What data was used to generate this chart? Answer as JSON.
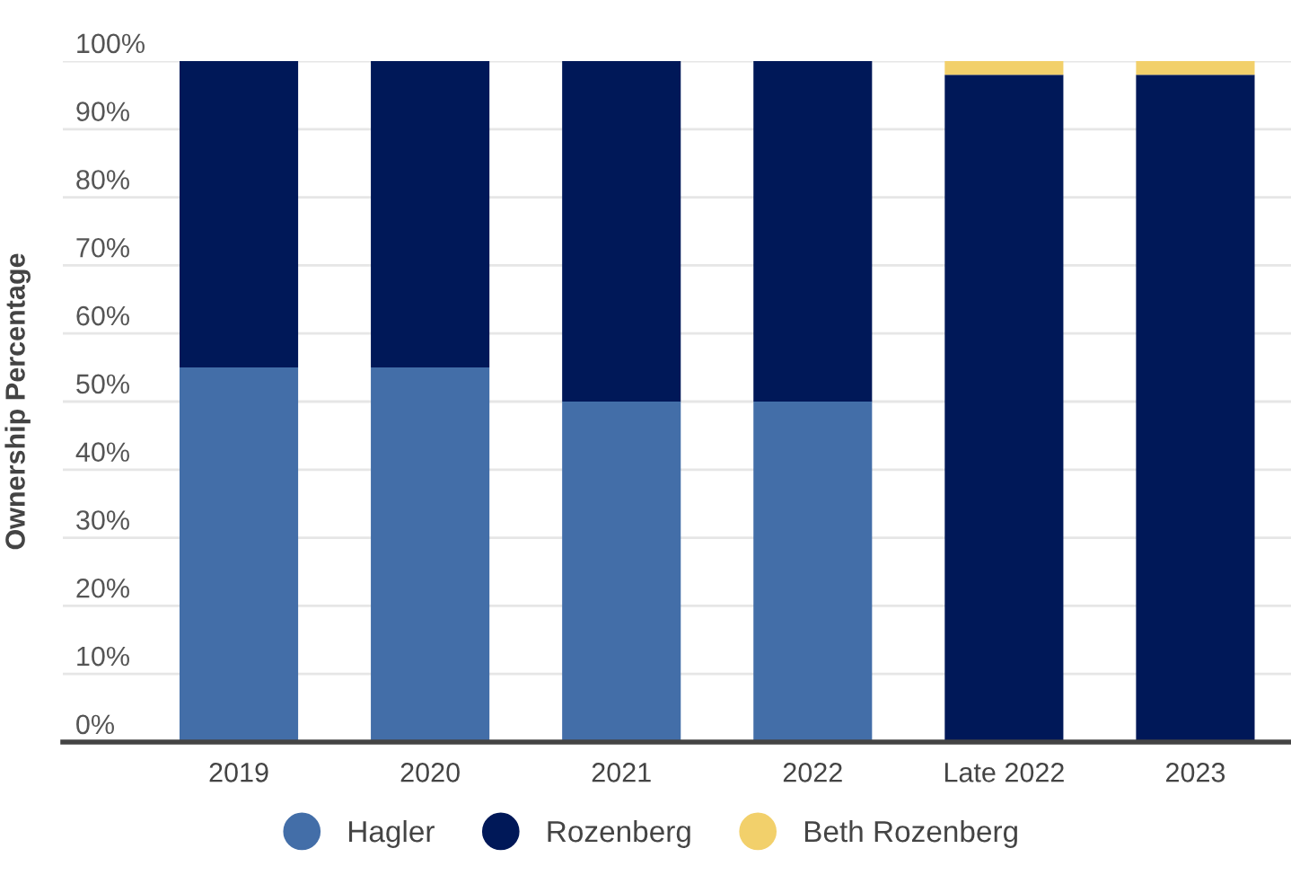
{
  "chart_data": {
    "type": "bar",
    "stacked": true,
    "ylabel": "Ownership Percentage",
    "categories": [
      "2019",
      "2020",
      "2021",
      "2022",
      "Late 2022",
      "2023"
    ],
    "series": [
      {
        "name": "Hagler",
        "color": "#436ea8",
        "values": [
          55,
          55,
          50,
          50,
          0,
          0
        ]
      },
      {
        "name": "Rozenberg",
        "color": "#001858",
        "values": [
          45,
          45,
          50,
          50,
          98,
          98
        ]
      },
      {
        "name": "Beth Rozenberg",
        "color": "#f2d06b",
        "values": [
          null,
          null,
          null,
          null,
          2,
          2
        ]
      }
    ],
    "ylim": [
      0,
      100
    ],
    "yticks": [
      {
        "value": 0,
        "label": "0%"
      },
      {
        "value": 10,
        "label": "10%"
      },
      {
        "value": 20,
        "label": "20%"
      },
      {
        "value": 30,
        "label": "30%"
      },
      {
        "value": 40,
        "label": "40%"
      },
      {
        "value": 50,
        "label": "50%"
      },
      {
        "value": 60,
        "label": "60%"
      },
      {
        "value": 70,
        "label": "70%"
      },
      {
        "value": 80,
        "label": "80%"
      },
      {
        "value": 90,
        "label": "90%"
      },
      {
        "value": 100,
        "label": "100%"
      }
    ],
    "grid": "y",
    "legend": "bottom"
  }
}
